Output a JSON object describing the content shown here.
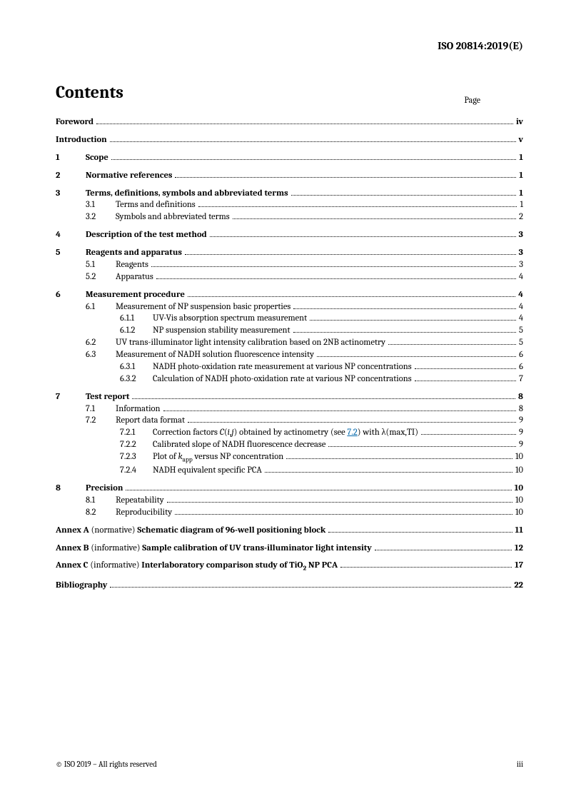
{
  "doc_header": "ISO 20814:2019(E)",
  "contents_heading": "Contents",
  "page_label": "Page",
  "footer_left": "© ISO 2019 – All rights reserved",
  "footer_right": "iii",
  "front": [
    {
      "title": "Foreword",
      "page": "iv"
    },
    {
      "title": "Introduction",
      "page": "v"
    }
  ],
  "sections": [
    {
      "num": "1",
      "title": "Scope",
      "page": "1"
    },
    {
      "num": "2",
      "title": "Normative references",
      "page": "1"
    },
    {
      "num": "3",
      "title": "Terms, definitions, symbols and abbreviated terms",
      "page": "1",
      "subs": [
        {
          "num": "3.1",
          "title": "Terms and definitions",
          "page": "1"
        },
        {
          "num": "3.2",
          "title": "Symbols and abbreviated terms",
          "page": "2"
        }
      ]
    },
    {
      "num": "4",
      "title": "Description of the test method",
      "page": "3"
    },
    {
      "num": "5",
      "title": "Reagents and apparatus",
      "page": "3",
      "subs": [
        {
          "num": "5.1",
          "title": "Reagents",
          "page": "3"
        },
        {
          "num": "5.2",
          "title": "Apparatus",
          "page": "4"
        }
      ]
    },
    {
      "num": "6",
      "title": "Measurement procedure",
      "page": "4",
      "subs": [
        {
          "num": "6.1",
          "title": "Measurement of NP suspension basic properties",
          "page": "4",
          "subsubs": [
            {
              "num": "6.1.1",
              "title": "UV-Vis absorption spectrum measurement",
              "page": "4"
            },
            {
              "num": "6.1.2",
              "title": "NP suspension stability measurement",
              "page": "5"
            }
          ]
        },
        {
          "num": "6.2",
          "title": "UV trans-illuminator light intensity calibration based on 2NB actinometry",
          "page": "5"
        },
        {
          "num": "6.3",
          "title": "Measurement of NADH solution fluorescence intensity",
          "page": "6",
          "subsubs": [
            {
              "num": "6.3.1",
              "title": "NADH photo-oxidation rate measurement at various NP concentrations",
              "page": "6"
            },
            {
              "num": "6.3.2",
              "title": "Calculation of NADH photo-oxidation rate at various NP concentrations",
              "page": "7"
            }
          ]
        }
      ]
    },
    {
      "num": "7",
      "title": "Test report",
      "page": "8",
      "subs": [
        {
          "num": "7.1",
          "title": "Information",
          "page": "8"
        },
        {
          "num": "7.2",
          "title": "Report data format",
          "page": "9",
          "subsubs": [
            {
              "num": "7.2.1",
              "title_html": "Correction factors <span class='italic'>C</span>(<span class='italic'>i</span>,<span class='italic'>j</span>) obtained by actinometry (see <span class='xref'>7.2</span>) with λ(max,TI)",
              "page": "9"
            },
            {
              "num": "7.2.2",
              "title": "Calibrated slope of NADH fluorescence decrease",
              "page": "9"
            },
            {
              "num": "7.2.3",
              "title_html": "Plot of <span class='italic'>k</span><sub>app</sub> versus NP concentration",
              "page": "10"
            },
            {
              "num": "7.2.4",
              "title": "NADH equivalent specific PCA",
              "page": "10"
            }
          ]
        }
      ]
    },
    {
      "num": "8",
      "title": "Precision",
      "page": "10",
      "subs": [
        {
          "num": "8.1",
          "title": "Repeatability",
          "page": "10"
        },
        {
          "num": "8.2",
          "title": "Reproducibility",
          "page": "10"
        }
      ]
    }
  ],
  "annexes": [
    {
      "title_html": "<b>Annex A</b> <span class='norm'>(normative)</span> <b>Schematic diagram of 96-well positioning block</b>",
      "page": "11"
    },
    {
      "title_html": "<b>Annex B</b> <span class='norm'>(informative)</span> <b>Sample calibration of UV trans-illuminator light intensity</b>",
      "page": "12"
    },
    {
      "title_html": "<b>Annex C</b> <span class='norm'>(informative)</span> <b>Interlaboratory comparison study of TiO<sub>2</sub> NP PCA</b>",
      "page": "17"
    }
  ],
  "biblio": {
    "title": "Bibliography",
    "page": "22"
  }
}
